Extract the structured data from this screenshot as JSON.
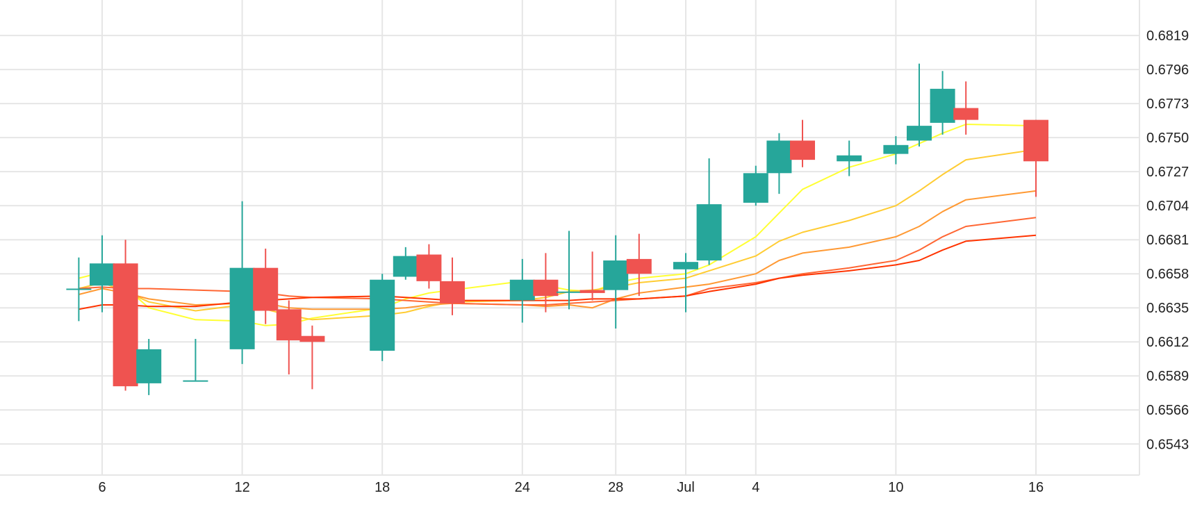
{
  "chart_data": {
    "type": "candlestick",
    "x_ticks": [
      "6",
      "12",
      "18",
      "24",
      "28",
      "Jul",
      "4",
      "10",
      "16"
    ],
    "y_ticks": [
      "0.6819",
      "0.6796",
      "0.6773",
      "0.6750",
      "0.6727",
      "0.6704",
      "0.6681",
      "0.6658",
      "0.6635",
      "0.6612",
      "0.6589",
      "0.6566",
      "0.6543"
    ],
    "ylim": [
      0.6522,
      0.6843
    ],
    "grid": true,
    "colors": {
      "up": "#26a69a",
      "down": "#ef5350"
    },
    "candles": [
      {
        "date": "2024-06-05",
        "open": 0.6648,
        "high": 0.6669,
        "low": 0.6626,
        "close": 0.6648
      },
      {
        "date": "2024-06-06",
        "open": 0.665,
        "high": 0.6684,
        "low": 0.6632,
        "close": 0.6665
      },
      {
        "date": "2024-06-07",
        "open": 0.6665,
        "high": 0.6681,
        "low": 0.6579,
        "close": 0.6582
      },
      {
        "date": "2024-06-08",
        "open": 0.6584,
        "high": 0.6614,
        "low": 0.6576,
        "close": 0.6607
      },
      {
        "date": "2024-06-10",
        "open": 0.6586,
        "high": 0.6614,
        "low": 0.6586,
        "close": 0.6586
      },
      {
        "date": "2024-06-12",
        "open": 0.6607,
        "high": 0.6707,
        "low": 0.6597,
        "close": 0.6662
      },
      {
        "date": "2024-06-13",
        "open": 0.6662,
        "high": 0.6675,
        "low": 0.6624,
        "close": 0.6633
      },
      {
        "date": "2024-06-14",
        "open": 0.6634,
        "high": 0.664,
        "low": 0.659,
        "close": 0.6613
      },
      {
        "date": "2024-06-15",
        "open": 0.6616,
        "high": 0.6623,
        "low": 0.658,
        "close": 0.6612
      },
      {
        "date": "2024-06-18",
        "open": 0.6606,
        "high": 0.6658,
        "low": 0.6599,
        "close": 0.6654
      },
      {
        "date": "2024-06-19",
        "open": 0.6656,
        "high": 0.6676,
        "low": 0.6654,
        "close": 0.667
      },
      {
        "date": "2024-06-20",
        "open": 0.6671,
        "high": 0.6678,
        "low": 0.6648,
        "close": 0.6653
      },
      {
        "date": "2024-06-21",
        "open": 0.6653,
        "high": 0.6669,
        "low": 0.663,
        "close": 0.6638
      },
      {
        "date": "2024-06-24",
        "open": 0.664,
        "high": 0.6668,
        "low": 0.6625,
        "close": 0.6654
      },
      {
        "date": "2024-06-25",
        "open": 0.6654,
        "high": 0.6672,
        "low": 0.6632,
        "close": 0.6643
      },
      {
        "date": "2024-06-26",
        "open": 0.6646,
        "high": 0.6687,
        "low": 0.6634,
        "close": 0.6646
      },
      {
        "date": "2024-06-27",
        "open": 0.6647,
        "high": 0.6673,
        "low": 0.664,
        "close": 0.6645
      },
      {
        "date": "2024-06-28",
        "open": 0.6647,
        "high": 0.6684,
        "low": 0.6621,
        "close": 0.6667
      },
      {
        "date": "2024-06-29",
        "open": 0.6668,
        "high": 0.6685,
        "low": 0.6643,
        "close": 0.6658
      },
      {
        "date": "2024-07-01",
        "open": 0.6661,
        "high": 0.6672,
        "low": 0.6632,
        "close": 0.6666
      },
      {
        "date": "2024-07-02",
        "open": 0.6667,
        "high": 0.6736,
        "low": 0.6664,
        "close": 0.6705
      },
      {
        "date": "2024-07-04",
        "open": 0.6706,
        "high": 0.6731,
        "low": 0.6704,
        "close": 0.6726
      },
      {
        "date": "2024-07-05",
        "open": 0.6726,
        "high": 0.6753,
        "low": 0.6712,
        "close": 0.6748
      },
      {
        "date": "2024-07-06",
        "open": 0.6748,
        "high": 0.6762,
        "low": 0.673,
        "close": 0.6735
      },
      {
        "date": "2024-07-08",
        "open": 0.6734,
        "high": 0.6748,
        "low": 0.6724,
        "close": 0.6738
      },
      {
        "date": "2024-07-10",
        "open": 0.6739,
        "high": 0.6751,
        "low": 0.6732,
        "close": 0.6745
      },
      {
        "date": "2024-07-11",
        "open": 0.6748,
        "high": 0.68,
        "low": 0.6744,
        "close": 0.6758
      },
      {
        "date": "2024-07-12",
        "open": 0.676,
        "high": 0.6795,
        "low": 0.6752,
        "close": 0.6783
      },
      {
        "date": "2024-07-13",
        "open": 0.677,
        "high": 0.6788,
        "low": 0.6752,
        "close": 0.6762
      },
      {
        "date": "2024-07-16",
        "open": 0.6762,
        "high": 0.6762,
        "low": 0.671,
        "close": 0.6734
      }
    ],
    "moving_averages": [
      {
        "color": "#ffff33",
        "values": [
          0.6655,
          0.6659,
          0.6649,
          0.6635,
          0.6627,
          0.6626,
          0.6623,
          0.6624,
          0.6628,
          0.6635,
          0.6641,
          0.6645,
          0.6647,
          0.6653,
          0.665,
          0.6647,
          0.6646,
          0.6652,
          0.6655,
          0.6658,
          0.6664,
          0.6683,
          0.6699,
          0.6715,
          0.673,
          0.6739,
          0.6746,
          0.6753,
          0.6759,
          0.6758
        ]
      },
      {
        "color": "#ffcc33",
        "values": [
          0.6648,
          0.6652,
          0.6646,
          0.6639,
          0.6633,
          0.6637,
          0.6634,
          0.663,
          0.6627,
          0.663,
          0.6632,
          0.6636,
          0.6639,
          0.664,
          0.6642,
          0.6646,
          0.6647,
          0.6649,
          0.6652,
          0.6655,
          0.666,
          0.667,
          0.668,
          0.6686,
          0.6694,
          0.6704,
          0.6714,
          0.6725,
          0.6735,
          0.6742
        ]
      },
      {
        "color": "#ff9933",
        "values": [
          0.6644,
          0.6648,
          0.6645,
          0.6641,
          0.6637,
          0.6638,
          0.6638,
          0.6635,
          0.6634,
          0.6634,
          0.6635,
          0.6637,
          0.6638,
          0.6637,
          0.6636,
          0.6637,
          0.6635,
          0.6641,
          0.6645,
          0.6649,
          0.6651,
          0.6658,
          0.6667,
          0.6672,
          0.6676,
          0.6683,
          0.669,
          0.67,
          0.6708,
          0.6714
        ]
      },
      {
        "color": "#ff6633",
        "values": [
          0.6648,
          0.6649,
          0.6648,
          0.6648,
          0.6647,
          0.6646,
          0.6645,
          0.6643,
          0.6642,
          0.6641,
          0.664,
          0.6639,
          0.6638,
          0.6637,
          0.6637,
          0.6638,
          0.6639,
          0.664,
          0.6641,
          0.6643,
          0.6648,
          0.6652,
          0.6655,
          0.6658,
          0.6662,
          0.6667,
          0.6674,
          0.6683,
          0.669,
          0.6696
        ]
      },
      {
        "color": "#ff3300",
        "values": [
          0.6634,
          0.6637,
          0.6637,
          0.6636,
          0.6636,
          0.6639,
          0.664,
          0.6641,
          0.6642,
          0.6643,
          0.6642,
          0.6641,
          0.664,
          0.664,
          0.664,
          0.664,
          0.6641,
          0.6641,
          0.6641,
          0.6643,
          0.6646,
          0.6651,
          0.6655,
          0.6657,
          0.666,
          0.6664,
          0.6667,
          0.6674,
          0.668,
          0.6684
        ]
      }
    ]
  }
}
